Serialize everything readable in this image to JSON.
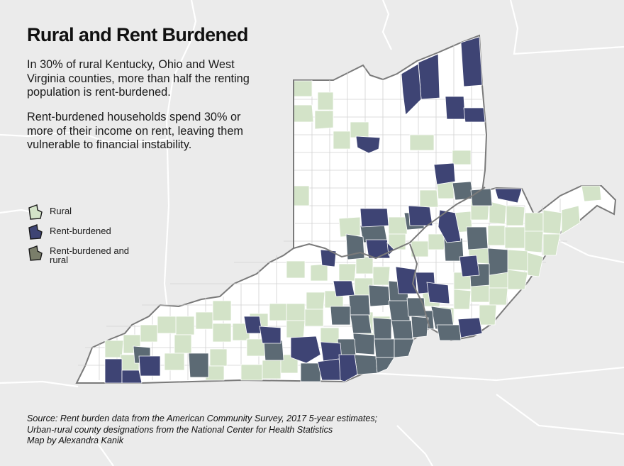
{
  "title": "Rural and Rent Burdened",
  "paragraphs": [
    "In 30% of rural Kentucky, Ohio and West Virginia counties, more than half the renting population is rent-burdened.",
    "Rent-burdened households spend 30% or more of their income on rent, leaving them vulnerable to financial instability."
  ],
  "legend": [
    {
      "label": "Rural",
      "color": "#d3e3c8",
      "icon": "rural-swatch-icon"
    },
    {
      "label": "Rent-burdened",
      "color": "#3e4474",
      "icon": "rent-burdened-swatch-icon"
    },
    {
      "label": "Rent-burdened and rural",
      "color": "#5c6a74",
      "icon": "rent-burdened-rural-swatch-icon"
    }
  ],
  "source_lines": [
    "Source: Rent burden data from the American Community Survey, 2017 5-year estimates;",
    "Urban-rural county designations from the National Center for Health Statistics",
    "Map by Alexandra Kanik"
  ],
  "colors": {
    "background": "#ebebeb",
    "region_fill": "#ffffff",
    "county_border": "#cfcfcf",
    "state_border": "#7a7a7a",
    "rural": "#d3e3c8",
    "rent_burdened": "#3e4474",
    "rent_burdened_rural": "#5c6a74"
  }
}
